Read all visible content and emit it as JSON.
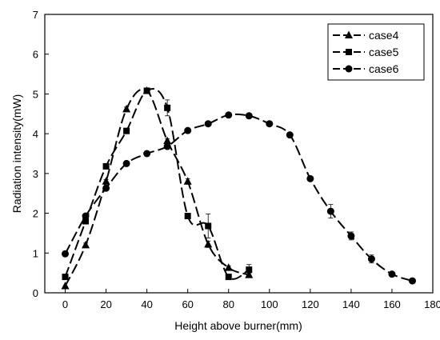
{
  "chart_data": {
    "type": "line",
    "xlabel": "Height above burner(mm)",
    "ylabel": "Radiation intensity(mW)",
    "xlim": [
      -10,
      180
    ],
    "ylim": [
      0,
      7
    ],
    "xticks": [
      0,
      20,
      40,
      60,
      80,
      100,
      120,
      140,
      160,
      180
    ],
    "yticks": [
      0,
      1,
      2,
      3,
      4,
      5,
      6,
      7
    ],
    "grid": false,
    "legend_position": "top-right",
    "series": [
      {
        "name": "case4",
        "marker": "triangle",
        "line_style": "dashed",
        "x": [
          0,
          10,
          20,
          30,
          40,
          50,
          60,
          70,
          80,
          90
        ],
        "y": [
          0.17,
          1.2,
          2.8,
          4.62,
          5.08,
          3.82,
          2.8,
          1.22,
          0.63,
          0.45
        ],
        "err": [
          0,
          0.05,
          0.05,
          0.05,
          0.05,
          0.05,
          0.07,
          0.08,
          0.05,
          0.05
        ]
      },
      {
        "name": "case5",
        "marker": "square",
        "line_style": "dashed",
        "x": [
          0,
          10,
          20,
          30,
          40,
          50,
          60,
          70,
          80,
          90
        ],
        "y": [
          0.4,
          1.8,
          3.18,
          4.07,
          5.08,
          4.65,
          1.93,
          1.68,
          0.4,
          0.58
        ],
        "err": [
          0,
          0.05,
          0.05,
          0.05,
          0.05,
          0.2,
          0.05,
          0.3,
          0.05,
          0.13
        ]
      },
      {
        "name": "case6",
        "marker": "circle",
        "line_style": "dashed",
        "x": [
          0,
          10,
          20,
          30,
          40,
          50,
          60,
          70,
          80,
          90,
          100,
          110,
          120,
          130,
          140,
          150,
          160,
          170
        ],
        "y": [
          0.98,
          1.93,
          2.63,
          3.25,
          3.5,
          3.68,
          4.08,
          4.25,
          4.47,
          4.45,
          4.25,
          3.97,
          2.87,
          2.05,
          1.43,
          0.85,
          0.47,
          0.3
        ],
        "err": [
          0,
          0.05,
          0.05,
          0.05,
          0.05,
          0.05,
          0.05,
          0.05,
          0.05,
          0.05,
          0.05,
          0.05,
          0.05,
          0.17,
          0.1,
          0.1,
          0.05,
          0.05
        ]
      }
    ],
    "colors": {
      "line": "#000000",
      "background": "#ffffff",
      "legend_border": "#000000"
    }
  }
}
